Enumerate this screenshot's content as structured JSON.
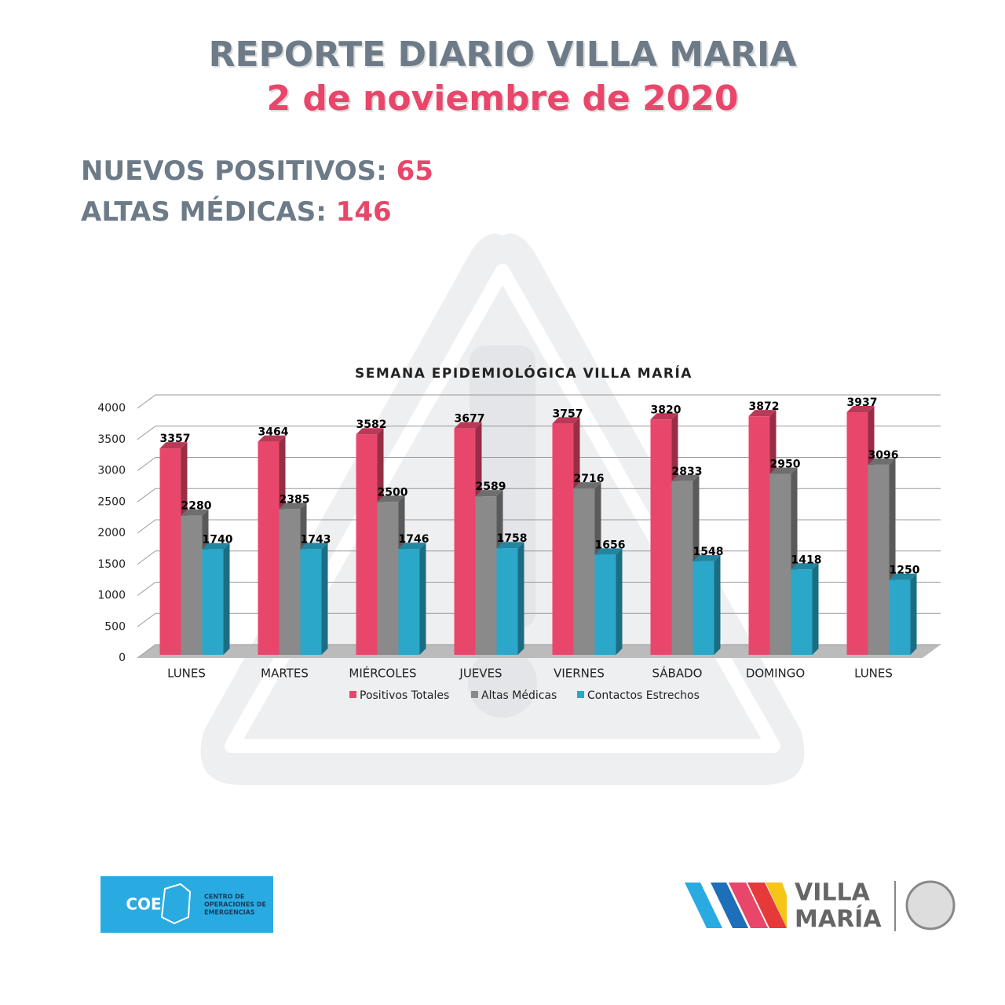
{
  "header": {
    "title": "REPORTE DIARIO VILLA MARIA",
    "date": "2 de noviembre de 2020"
  },
  "stats": [
    {
      "label": "NUEVOS POSITIVOS:",
      "value": 65
    },
    {
      "label": "ALTAS MÉDICAS:",
      "value": 146
    }
  ],
  "chart_data": {
    "type": "bar3d",
    "title": "SEMANA EPIDEMIOLÓGICA VILLA MARÍA",
    "categories": [
      "LUNES",
      "MARTES",
      "MIÉRCOLES",
      "JUEVES",
      "VIERNES",
      "SÁBADO",
      "DOMINGO",
      "LUNES"
    ],
    "series": [
      {
        "name": "Positivos Totales",
        "color": "#e8476b",
        "values": [
          3357,
          3464,
          3582,
          3677,
          3757,
          3820,
          3872,
          3937
        ]
      },
      {
        "name": "Altas Médicas",
        "color": "#8a8a8a",
        "values": [
          2280,
          2385,
          2500,
          2589,
          2716,
          2833,
          2950,
          3096
        ]
      },
      {
        "name": "Contactos Estrechos",
        "color": "#2aa7c9",
        "values": [
          1740,
          1743,
          1746,
          1758,
          1656,
          1548,
          1418,
          1250
        ]
      }
    ],
    "ylim": [
      0,
      4000
    ],
    "yticks": [
      0,
      500,
      1000,
      1500,
      2000,
      2500,
      3000,
      3500,
      4000
    ],
    "grid": true,
    "legend": "bottom"
  },
  "footer": {
    "coe": {
      "short": "COE",
      "lines": [
        "CENTRO DE",
        "OPERACIONES DE",
        "EMERGENCIAS"
      ]
    },
    "city": [
      "VILLA",
      "MARÍA"
    ]
  }
}
